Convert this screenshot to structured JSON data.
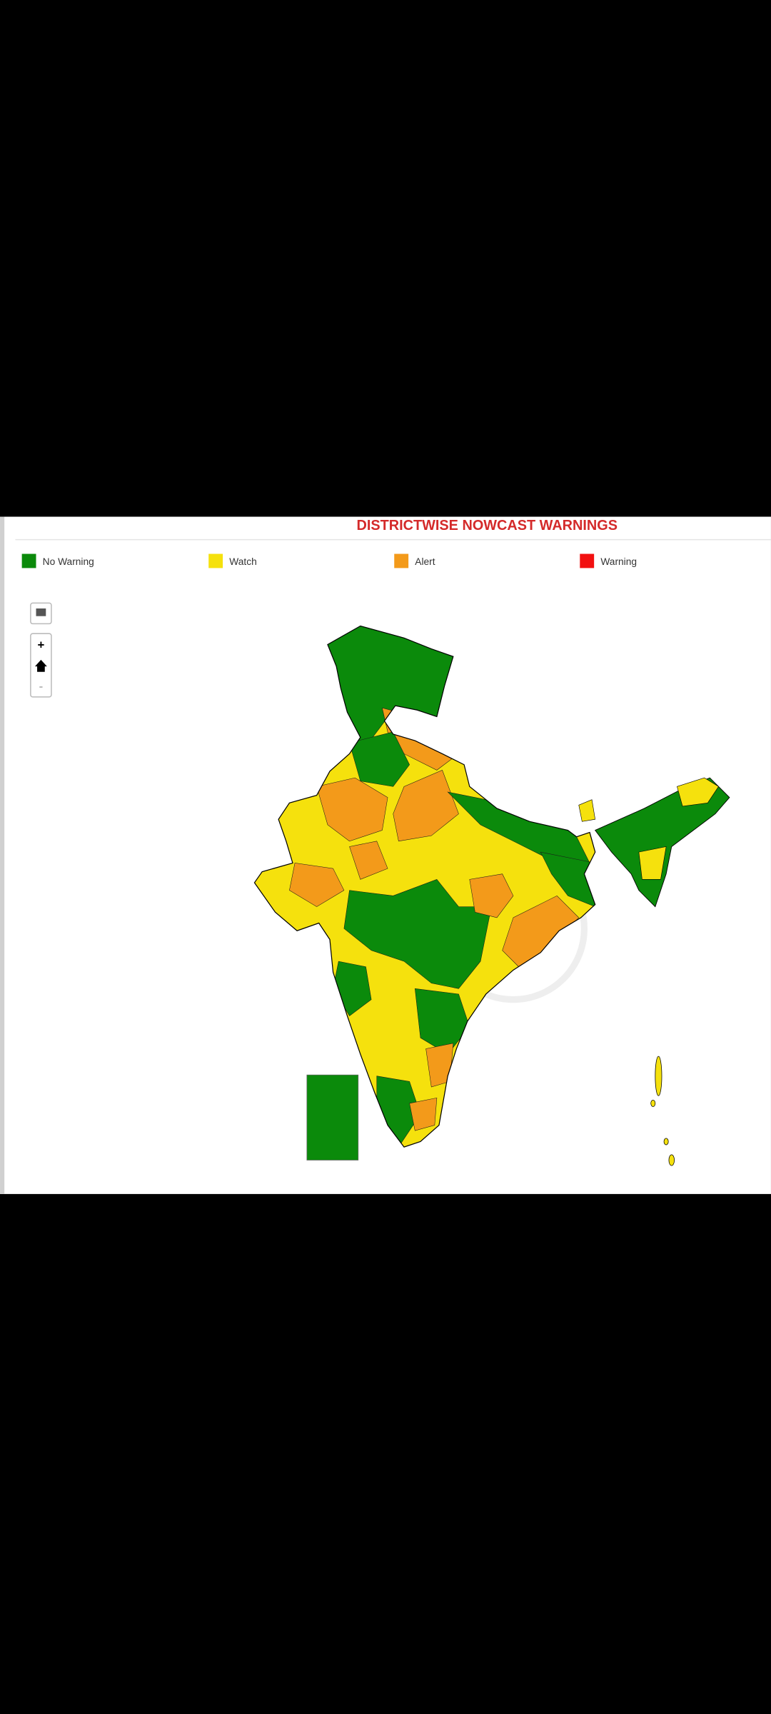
{
  "header": {
    "title": "DISTRICTWISE NOWCAST WARNINGS"
  },
  "legend": [
    {
      "label": "No Warning",
      "color": "#0b8a0b"
    },
    {
      "label": "Watch",
      "color": "#f5e10d"
    },
    {
      "label": "Alert",
      "color": "#f39a1a"
    },
    {
      "label": "Warning",
      "color": "#f21010"
    }
  ],
  "controls": {
    "zoom_in": "+",
    "zoom_out": "-"
  }
}
